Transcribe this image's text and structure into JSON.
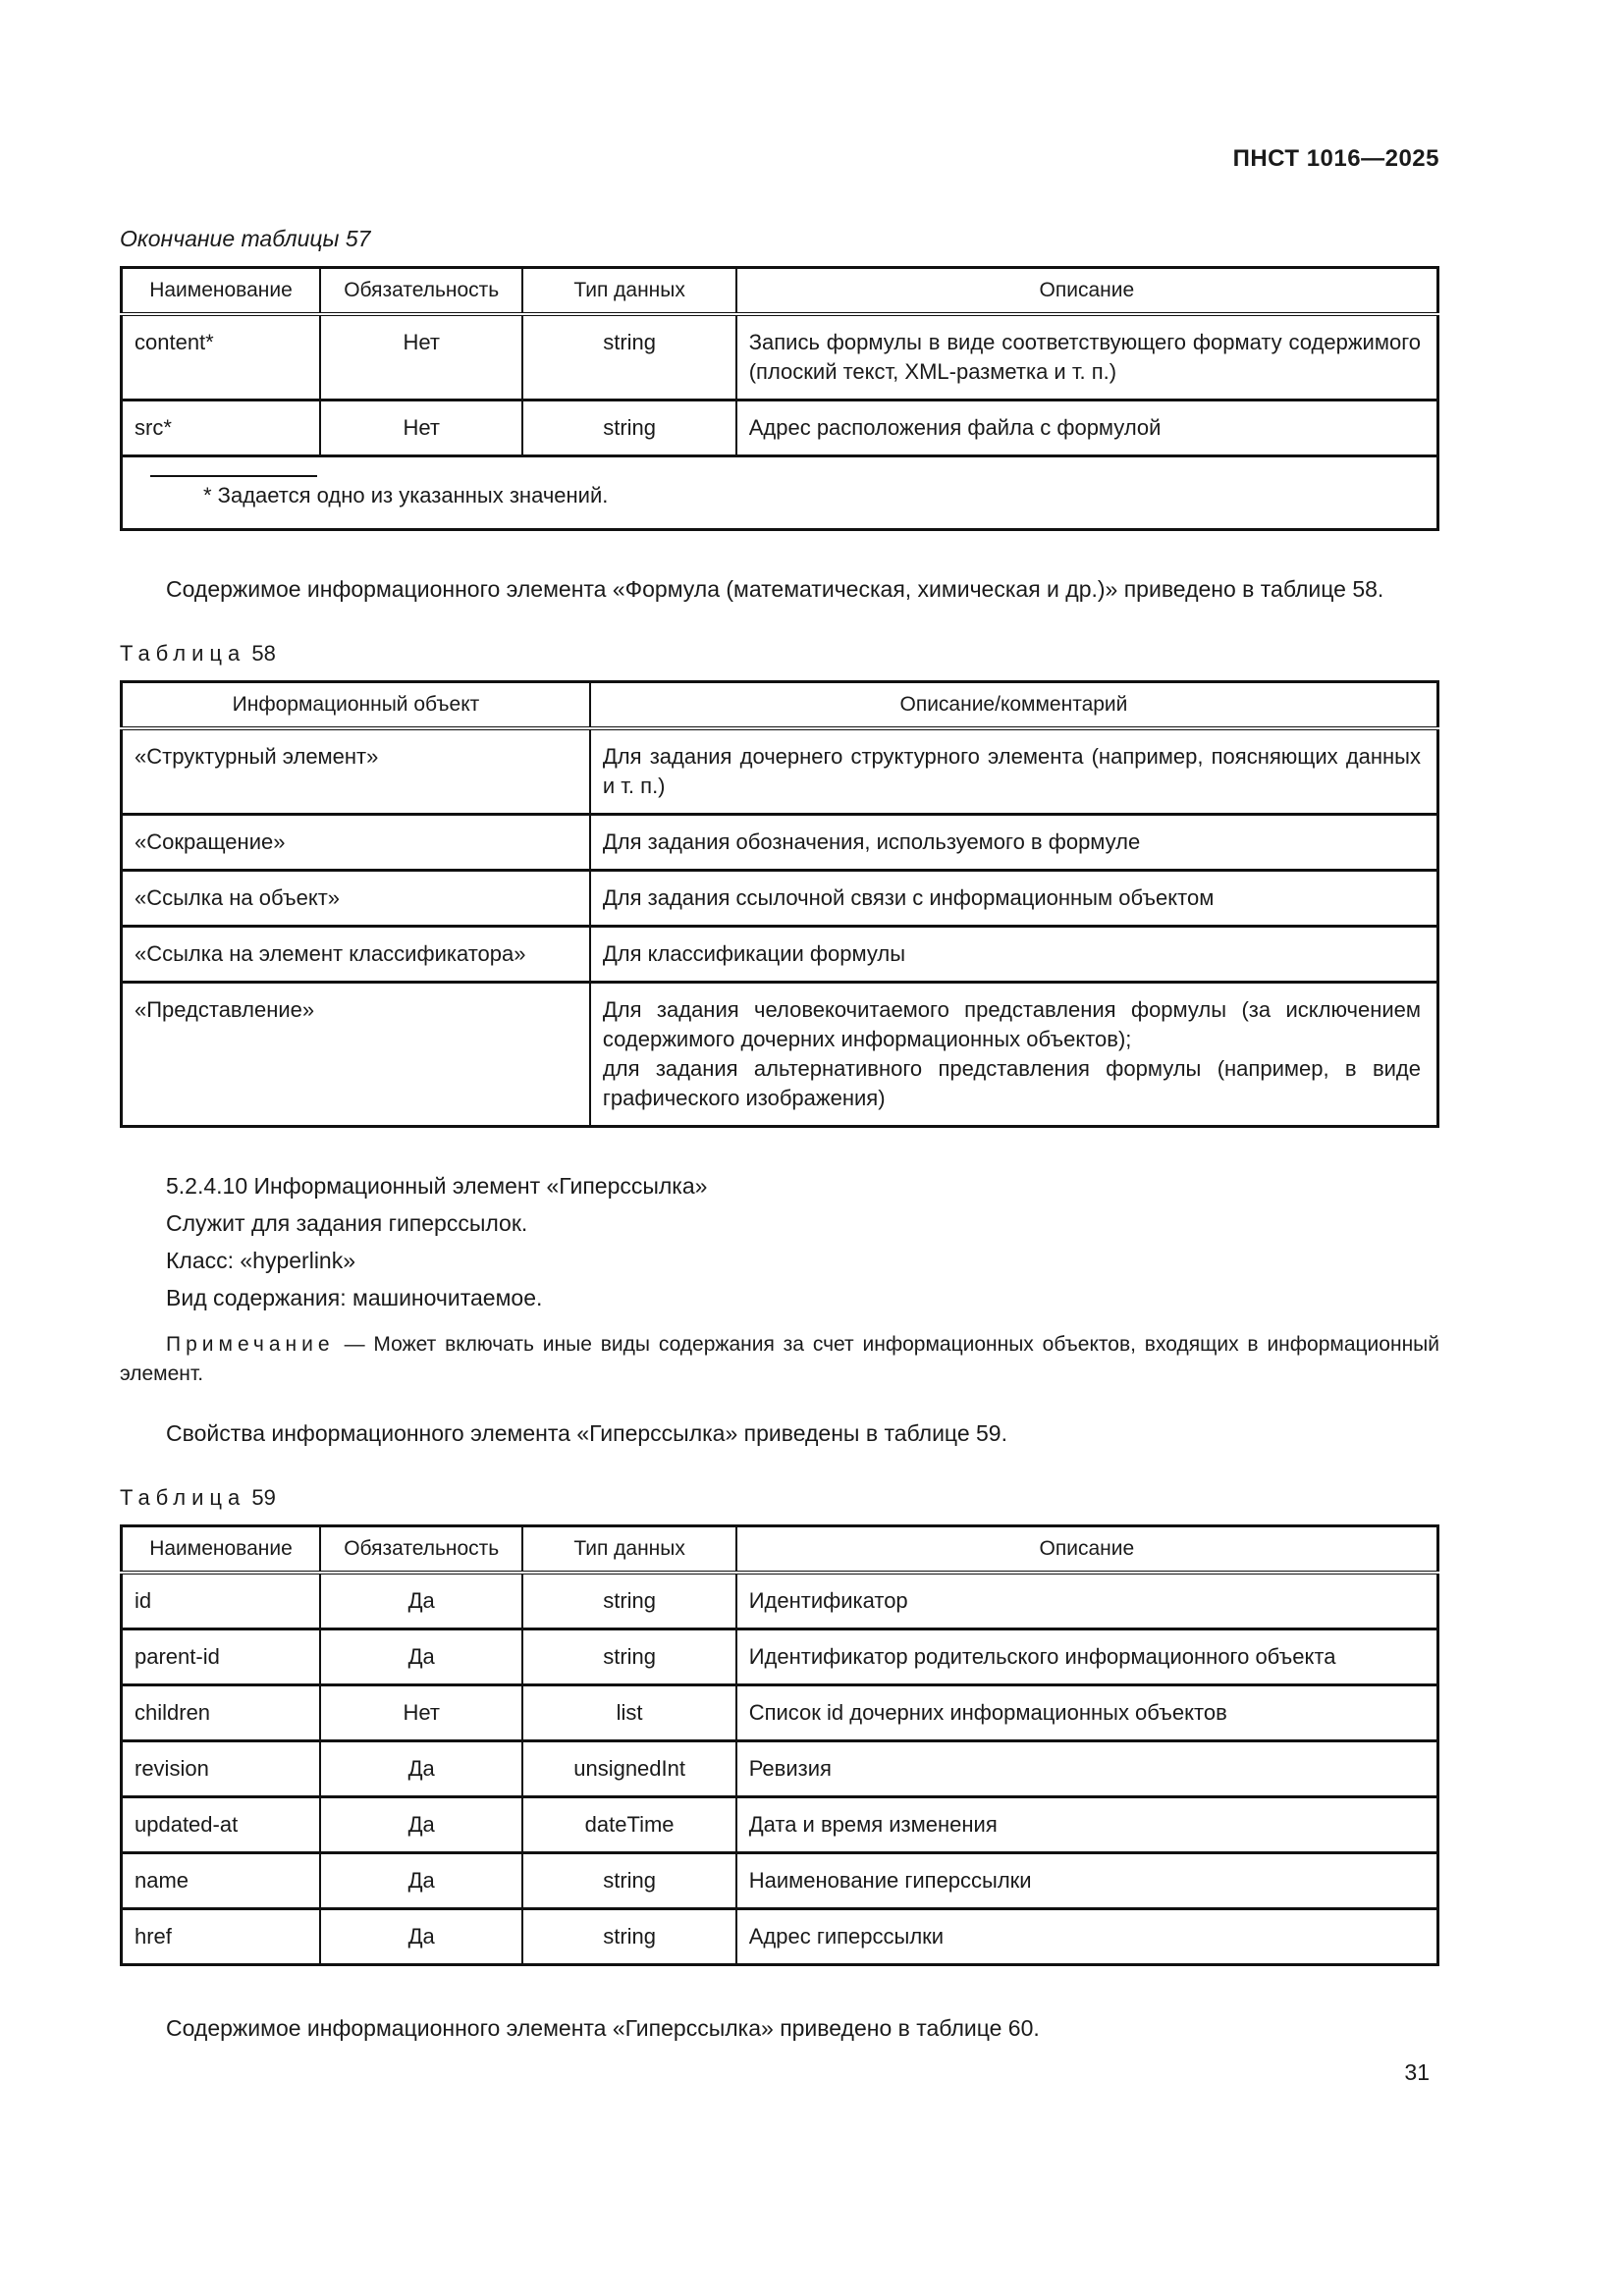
{
  "page": {
    "doc_code": "ПНСТ 1016—2025",
    "page_number": "31"
  },
  "table57": {
    "caption": "Окончание таблицы 57",
    "headers": [
      "Наименование",
      "Обязательность",
      "Тип данных",
      "Описание"
    ],
    "rows": [
      {
        "name": "content*",
        "required": "Нет",
        "type": "string",
        "desc": "Запись формулы в виде соответствующего формату содержимого (плоский текст, XML-разметка и т. п.)"
      },
      {
        "name": "src*",
        "required": "Нет",
        "type": "string",
        "desc": "Адрес расположения файла с формулой"
      }
    ],
    "footnote": "* Задается одно из указанных значений."
  },
  "paragraph1": "Содержимое информационного элемента «Формула (математическая, химическая и др.)» приведено в таблице 58.",
  "table58": {
    "caption_word": "Таблица",
    "caption_number": "58",
    "headers": [
      "Информационный объект",
      "Описание/комментарий"
    ],
    "rows": [
      {
        "object": "«Структурный элемент»",
        "desc": "Для задания дочернего структурного элемента (например, поясняющих данных и т. п.)"
      },
      {
        "object": "«Сокращение»",
        "desc": "Для задания обозначения, используемого в формуле"
      },
      {
        "object": "«Ссылка на объект»",
        "desc": "Для задания ссылочной связи с информационным объектом"
      },
      {
        "object": "«Ссылка на элемент классификатора»",
        "desc": "Для классификации формулы"
      },
      {
        "object": "«Представление»",
        "desc": "Для задания человекочитаемого представления формулы (за исключением содержимого дочерних информационных объектов);",
        "desc2": "для задания альтернативного представления формулы (например, в виде графического изображения)"
      }
    ]
  },
  "section": {
    "heading": "5.2.4.10 Информационный элемент «Гиперссылка»",
    "line1": "Служит для задания гиперссылок.",
    "line2": "Класс: «hyperlink»",
    "line3": "Вид содержания: машиночитаемое.",
    "note_label": "Примечание",
    "note_text": "— Может включать иные виды содержания за счет информационных объектов, входящих в информационный элемент."
  },
  "paragraph2": "Свойства информационного элемента «Гиперссылка» приведены в таблице 59.",
  "table59": {
    "caption_word": "Таблица",
    "caption_number": "59",
    "headers": [
      "Наименование",
      "Обязательность",
      "Тип данных",
      "Описание"
    ],
    "rows": [
      {
        "name": "id",
        "required": "Да",
        "type": "string",
        "desc": "Идентификатор"
      },
      {
        "name": "parent-id",
        "required": "Да",
        "type": "string",
        "desc": "Идентификатор родительского информационного объекта"
      },
      {
        "name": "children",
        "required": "Нет",
        "type": "list",
        "desc": "Список id дочерних информационных объектов"
      },
      {
        "name": "revision",
        "required": "Да",
        "type": "unsignedInt",
        "desc": "Ревизия"
      },
      {
        "name": "updated-at",
        "required": "Да",
        "type": "dateTime",
        "desc": "Дата и время изменения"
      },
      {
        "name": "name",
        "required": "Да",
        "type": "string",
        "desc": "Наименование гиперссылки"
      },
      {
        "name": "href",
        "required": "Да",
        "type": "string",
        "desc": "Адрес гиперссылки"
      }
    ]
  },
  "paragraph3": "Содержимое информационного элемента «Гиперссылка» приведено в таблице 60."
}
